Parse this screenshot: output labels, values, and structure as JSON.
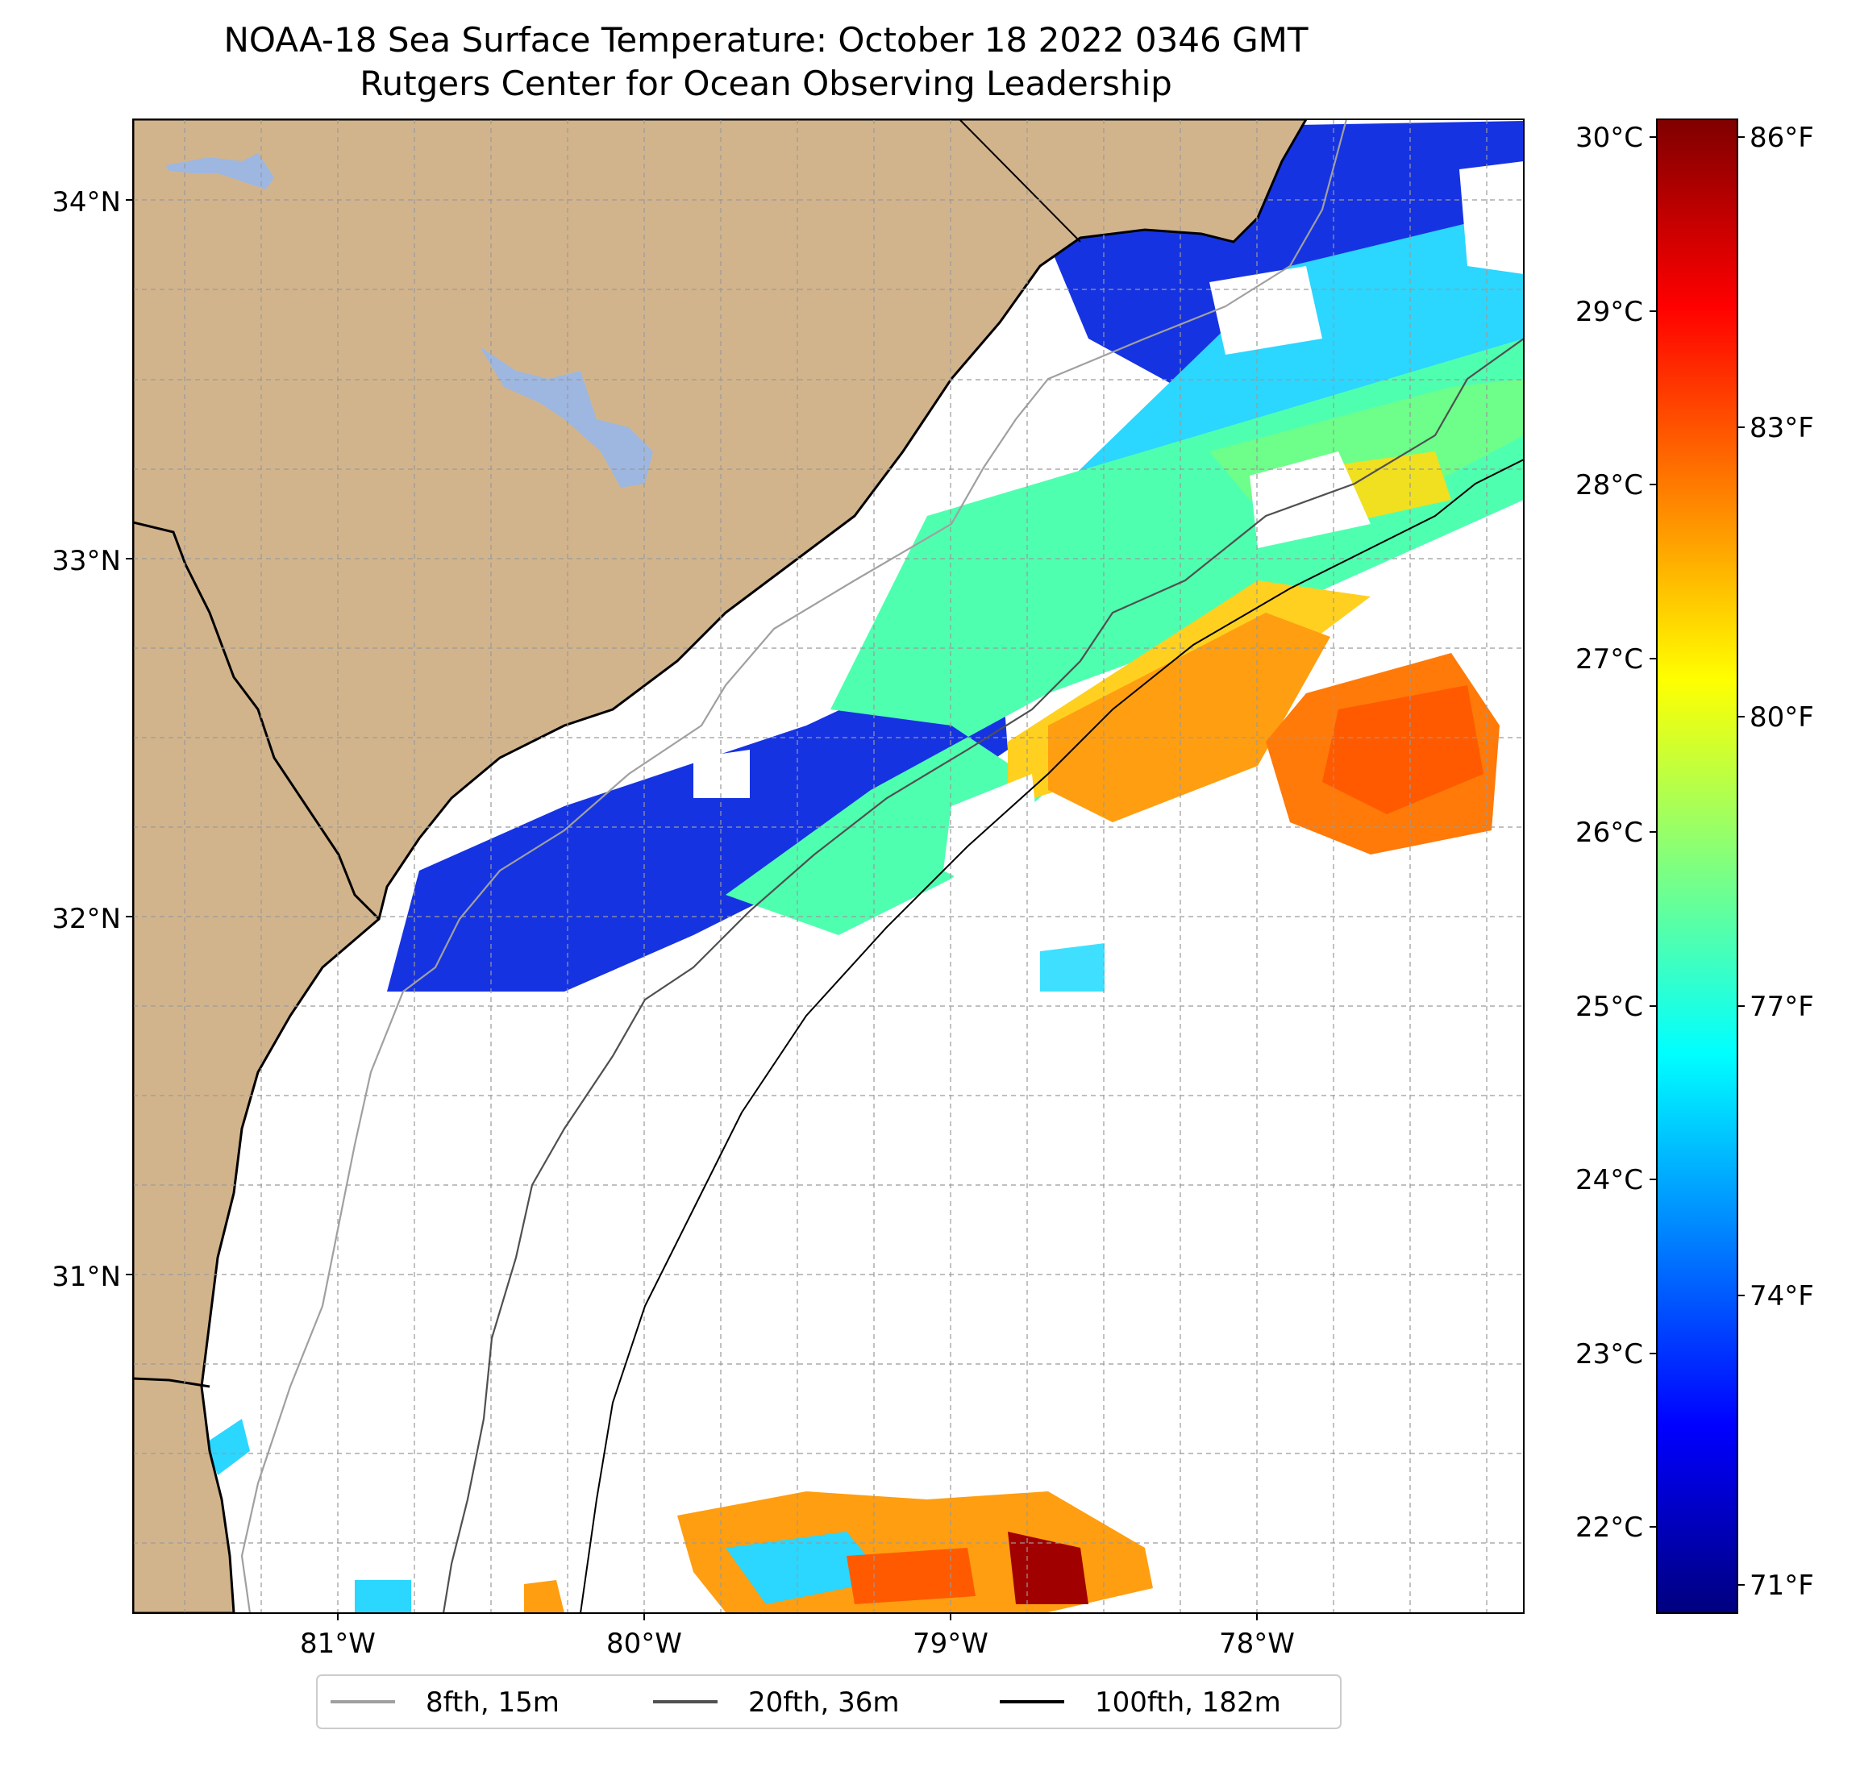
{
  "title": {
    "line1": "NOAA-18 Sea Surface Temperature: October 18 2022 0346 GMT",
    "line2": "Rutgers Center for Ocean Observing Leadership"
  },
  "map": {
    "lat_ticks": [
      "34°N",
      "33°N",
      "32°N",
      "31°N"
    ],
    "lon_ticks": [
      "81°W",
      "80°W",
      "79°W",
      "78°W"
    ],
    "land_color": "#d2b48c",
    "lake_color": "#9db7e0",
    "gridlines": true
  },
  "colorbar": {
    "celsius_ticks": [
      "30°C",
      "29°C",
      "28°C",
      "27°C",
      "26°C",
      "25°C",
      "24°C",
      "23°C",
      "22°C"
    ],
    "fahrenheit_ticks": [
      "86°F",
      "83°F",
      "80°F",
      "77°F",
      "74°F",
      "71°F"
    ],
    "colormap": "jet",
    "range_c": [
      21.6,
      30.2
    ]
  },
  "legend": {
    "items": [
      {
        "label": "8fth, 15m",
        "color": "#a0a0a0"
      },
      {
        "label": "20fth, 36m",
        "color": "#505050"
      },
      {
        "label": "100fth, 182m",
        "color": "#000000"
      }
    ]
  }
}
